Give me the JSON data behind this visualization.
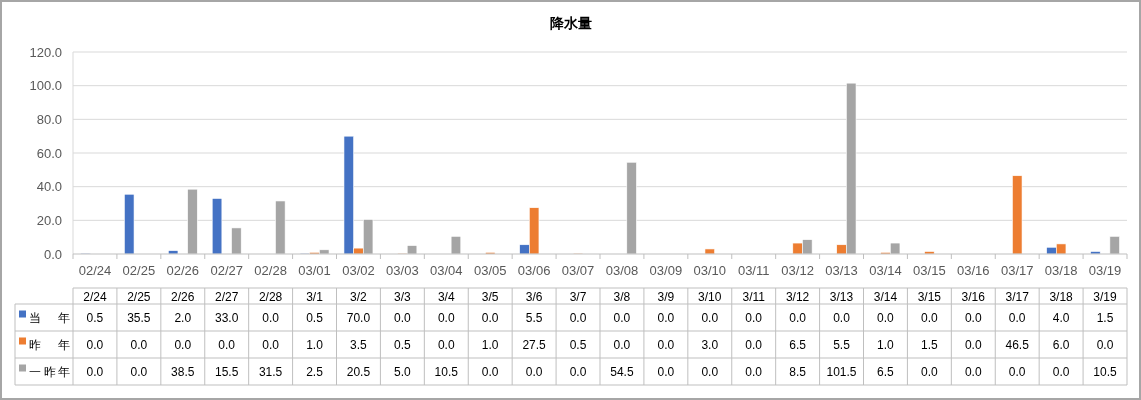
{
  "chart_data": {
    "type": "bar",
    "title": "降水量",
    "categories": [
      "02/24",
      "02/25",
      "02/26",
      "02/27",
      "02/28",
      "03/01",
      "03/02",
      "03/03",
      "03/04",
      "03/05",
      "03/06",
      "03/07",
      "03/08",
      "03/09",
      "03/10",
      "03/11",
      "03/12",
      "03/13",
      "03/14",
      "03/15",
      "03/16",
      "03/17",
      "03/18",
      "03/19"
    ],
    "series": [
      {
        "name": "当 年",
        "color": "#4472c4",
        "values": [
          0.5,
          35.5,
          2.0,
          33.0,
          0.0,
          0.5,
          70.0,
          0.0,
          0.0,
          0.0,
          5.5,
          0.0,
          0.0,
          0.0,
          0.0,
          0.0,
          0.0,
          0.0,
          0.0,
          0.0,
          0.0,
          0.0,
          4.0,
          1.5
        ],
        "value_labels": [
          "0.5",
          "35.5",
          "2.0",
          "33.0",
          "0.0",
          "0.5",
          "70.0",
          "0.0",
          "0.0",
          "0.0",
          "5.5",
          "0.0",
          "0.0",
          "0.0",
          "0.0",
          "0.0",
          "0.0",
          "0.0",
          "0.0",
          "0.0",
          "0.0",
          "0.0",
          "4.0",
          "1.5"
        ]
      },
      {
        "name": "昨 年",
        "color": "#ed7d31",
        "values": [
          0.0,
          0.0,
          0.0,
          0.0,
          0.0,
          1.0,
          3.5,
          0.5,
          0.0,
          1.0,
          27.5,
          0.5,
          0.0,
          0.0,
          3.0,
          0.0,
          6.5,
          5.5,
          1.0,
          1.5,
          0.0,
          46.5,
          6.0,
          0.0
        ],
        "value_labels": [
          "0.0",
          "0.0",
          "0.0",
          "0.0",
          "0.0",
          "1.0",
          "3.5",
          "0.5",
          "0.0",
          "1.0",
          "27.5",
          "0.5",
          "0.0",
          "0.0",
          "3.0",
          "0.0",
          "6.5",
          "5.5",
          "1.0",
          "1.5",
          "0.0",
          "46.5",
          "6.0",
          "0.0"
        ]
      },
      {
        "name": "一昨年",
        "color": "#a5a5a5",
        "values": [
          0.0,
          0.0,
          38.5,
          15.5,
          31.5,
          2.5,
          20.5,
          5.0,
          10.5,
          0.0,
          0.0,
          0.0,
          54.5,
          0.0,
          0.0,
          0.0,
          8.5,
          101.5,
          6.5,
          0.0,
          0.0,
          0.0,
          0.0,
          10.5
        ],
        "value_labels": [
          "0.0",
          "0.0",
          "38.5",
          "15.5",
          "31.5",
          "2.5",
          "20.5",
          "5.0",
          "10.5",
          "0.0",
          "0.0",
          "0.0",
          "54.5",
          "0.0",
          "0.0",
          "0.0",
          "8.5",
          "101.5",
          "6.5",
          "0.0",
          "0.0",
          "0.0",
          "0.0",
          "10.5"
        ]
      }
    ],
    "ylim": [
      0,
      120
    ],
    "yticks": [
      {
        "value": 0,
        "label": "0.0"
      },
      {
        "value": 20,
        "label": "20.0"
      },
      {
        "value": 40,
        "label": "40.0"
      },
      {
        "value": 60,
        "label": "60.0"
      },
      {
        "value": 80,
        "label": "80.0"
      },
      {
        "value": 100,
        "label": "100.0"
      },
      {
        "value": 120,
        "label": "120.0"
      }
    ],
    "grid": "y",
    "legend": "bottom left",
    "annotations": [
      "2/24",
      "2/25",
      "2/26",
      "2/27",
      "2/28",
      "3/1",
      "3/2",
      "3/3",
      "3/4",
      "3/5",
      "3/6",
      "3/7",
      "3/8",
      "3/9",
      "3/10",
      "3/11",
      "3/12",
      "3/13",
      "3/14",
      "3/15",
      "3/16",
      "3/17",
      "3/18",
      "3/19"
    ]
  }
}
